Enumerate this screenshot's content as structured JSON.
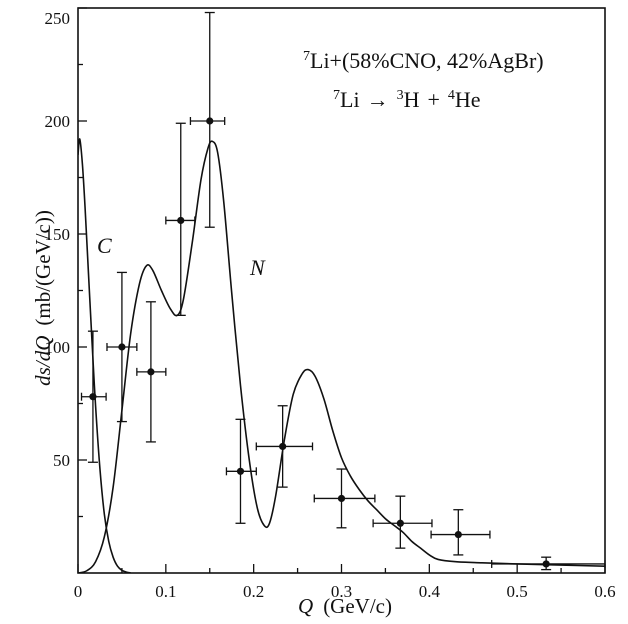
{
  "chart_data": {
    "type": "scatter",
    "xlabel": {
      "symbol": "Q",
      "unit": "(GeV/c)"
    },
    "ylabel": {
      "symbol": "ds/dQ",
      "unit": "(mb/(GeV/c))"
    },
    "xlim": [
      0,
      0.6
    ],
    "ylim": [
      0,
      250
    ],
    "xticks": [
      0,
      0.1,
      0.2,
      0.3,
      0.4,
      0.5,
      0.6
    ],
    "xtick_labels": [
      "0",
      "0.1",
      "0.2",
      "0.3",
      "0.4",
      "0.5",
      "0.6"
    ],
    "yticks": [
      50,
      100,
      150,
      200,
      250
    ],
    "ytick_labels": [
      "50",
      "100",
      "150",
      "200",
      "250"
    ],
    "grid": false,
    "annotations": [
      {
        "parts": [
          "7",
          "Li+(58%CNO, 42%AgBr)"
        ]
      },
      {
        "parts": [
          "7",
          "Li",
          "→",
          "3",
          "H",
          "+",
          "4",
          "He"
        ]
      }
    ],
    "points": [
      {
        "x": 0.017,
        "y": 78,
        "x_lo": 0.004,
        "x_hi": 0.032,
        "y_lo": 49,
        "y_hi": 107
      },
      {
        "x": 0.05,
        "y": 100,
        "x_lo": 0.033,
        "x_hi": 0.067,
        "y_lo": 67,
        "y_hi": 133
      },
      {
        "x": 0.083,
        "y": 89,
        "x_lo": 0.067,
        "x_hi": 0.1,
        "y_lo": 58,
        "y_hi": 120
      },
      {
        "x": 0.117,
        "y": 156,
        "x_lo": 0.1,
        "x_hi": 0.133,
        "y_lo": 114,
        "y_hi": 199
      },
      {
        "x": 0.15,
        "y": 200,
        "x_lo": 0.128,
        "x_hi": 0.167,
        "y_lo": 153,
        "y_hi": 248
      },
      {
        "x": 0.185,
        "y": 45,
        "x_lo": 0.169,
        "x_hi": 0.203,
        "y_lo": 22,
        "y_hi": 68
      },
      {
        "x": 0.233,
        "y": 56,
        "x_lo": 0.203,
        "x_hi": 0.267,
        "y_lo": 38,
        "y_hi": 74
      },
      {
        "x": 0.3,
        "y": 33,
        "x_lo": 0.269,
        "x_hi": 0.338,
        "y_lo": 20,
        "y_hi": 46
      },
      {
        "x": 0.367,
        "y": 22,
        "x_lo": 0.336,
        "x_hi": 0.403,
        "y_lo": 11,
        "y_hi": 34
      },
      {
        "x": 0.433,
        "y": 17,
        "x_lo": 0.402,
        "x_hi": 0.469,
        "y_lo": 8,
        "y_hi": 28
      },
      {
        "x": 0.533,
        "y": 4,
        "x_lo": 0.471,
        "x_hi": 0.6,
        "y_lo": 1.5,
        "y_hi": 7
      }
    ],
    "curves": [
      {
        "name": "C",
        "points": [
          [
            0,
            185
          ],
          [
            0.002,
            192
          ],
          [
            0.005,
            181
          ],
          [
            0.008,
            162
          ],
          [
            0.012,
            132
          ],
          [
            0.016,
            102
          ],
          [
            0.02,
            74
          ],
          [
            0.025,
            46
          ],
          [
            0.03,
            26
          ],
          [
            0.035,
            14
          ],
          [
            0.04,
            7
          ],
          [
            0.045,
            3
          ],
          [
            0.05,
            1.2
          ],
          [
            0.055,
            0.4
          ],
          [
            0.06,
            0
          ]
        ]
      },
      {
        "name": "N",
        "points": [
          [
            0,
            0
          ],
          [
            0.01,
            1
          ],
          [
            0.02,
            5
          ],
          [
            0.03,
            16
          ],
          [
            0.04,
            38
          ],
          [
            0.05,
            72
          ],
          [
            0.06,
            106
          ],
          [
            0.07,
            128
          ],
          [
            0.078,
            136
          ],
          [
            0.085,
            134
          ],
          [
            0.095,
            125
          ],
          [
            0.105,
            117
          ],
          [
            0.113,
            114
          ],
          [
            0.12,
            121
          ],
          [
            0.13,
            146
          ],
          [
            0.14,
            174
          ],
          [
            0.148,
            188
          ],
          [
            0.153,
            191
          ],
          [
            0.159,
            186
          ],
          [
            0.166,
            164
          ],
          [
            0.175,
            124
          ],
          [
            0.185,
            83
          ],
          [
            0.195,
            50
          ],
          [
            0.204,
            29
          ],
          [
            0.212,
            21
          ],
          [
            0.218,
            22
          ],
          [
            0.225,
            34
          ],
          [
            0.235,
            59
          ],
          [
            0.245,
            79
          ],
          [
            0.255,
            88
          ],
          [
            0.262,
            90
          ],
          [
            0.27,
            87
          ],
          [
            0.28,
            77
          ],
          [
            0.29,
            63
          ],
          [
            0.3,
            51
          ],
          [
            0.31,
            43
          ],
          [
            0.32,
            37
          ],
          [
            0.33,
            32
          ],
          [
            0.34,
            28
          ],
          [
            0.35,
            24
          ],
          [
            0.36,
            21
          ],
          [
            0.37,
            18
          ],
          [
            0.38,
            14
          ],
          [
            0.39,
            11
          ],
          [
            0.4,
            8
          ],
          [
            0.41,
            6
          ],
          [
            0.43,
            5
          ],
          [
            0.46,
            4.5
          ],
          [
            0.5,
            4
          ],
          [
            0.55,
            3.5
          ],
          [
            0.6,
            3
          ]
        ]
      }
    ]
  }
}
